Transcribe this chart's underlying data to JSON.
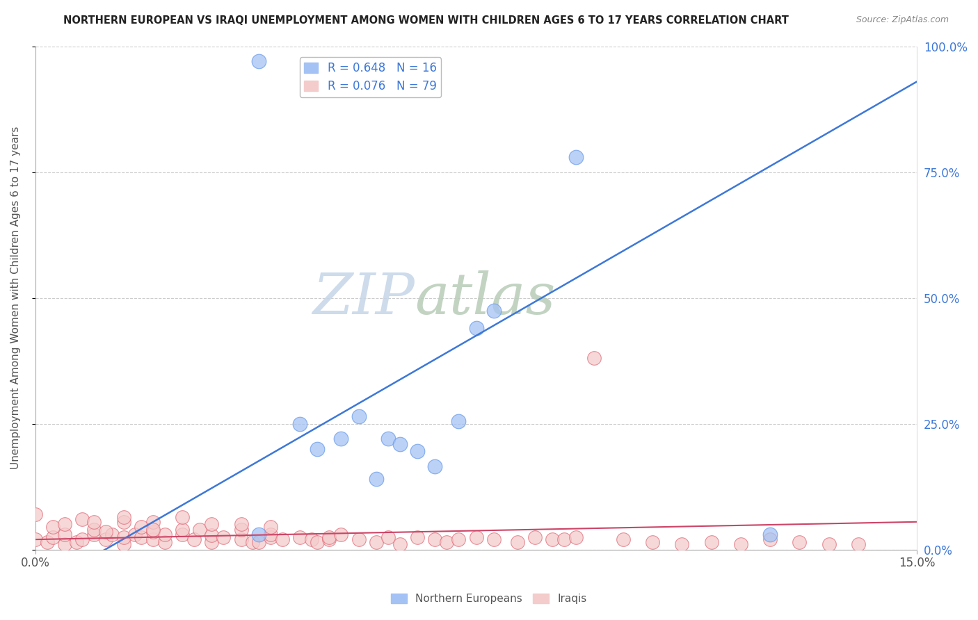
{
  "title": "NORTHERN EUROPEAN VS IRAQI UNEMPLOYMENT AMONG WOMEN WITH CHILDREN AGES 6 TO 17 YEARS CORRELATION CHART",
  "source": "Source: ZipAtlas.com",
  "ylabel": "Unemployment Among Women with Children Ages 6 to 17 years",
  "xlim": [
    0.0,
    0.15
  ],
  "ylim": [
    0.0,
    1.0
  ],
  "xtick_labels": [
    "0.0%",
    "15.0%"
  ],
  "xtick_values": [
    0.0,
    0.15
  ],
  "ytick_labels_right": [
    "0.0%",
    "25.0%",
    "50.0%",
    "75.0%",
    "100.0%"
  ],
  "ytick_values": [
    0.0,
    0.25,
    0.5,
    0.75,
    1.0
  ],
  "grid_color": "#cccccc",
  "watermark": "ZIPatlas",
  "watermark_color_zip": "#c5d5e8",
  "watermark_color_atlas": "#c8d8c8",
  "legend_R1": "R = 0.648",
  "legend_N1": "N = 16",
  "legend_R2": "R = 0.076",
  "legend_N2": "N = 79",
  "legend_label1": "Northern Europeans",
  "legend_label2": "Iraqis",
  "blue_color": "#a4c2f4",
  "pink_color": "#f4cccc",
  "blue_edge_color": "#6d9eeb",
  "pink_edge_color": "#e06c7a",
  "blue_line_color": "#3d78d8",
  "pink_line_color": "#cc4466",
  "blue_scatter": {
    "x": [
      0.038,
      0.045,
      0.048,
      0.052,
      0.055,
      0.058,
      0.06,
      0.062,
      0.065,
      0.068,
      0.072,
      0.075,
      0.078,
      0.092,
      0.125,
      0.038
    ],
    "y": [
      0.97,
      0.25,
      0.2,
      0.22,
      0.265,
      0.14,
      0.22,
      0.21,
      0.195,
      0.165,
      0.255,
      0.44,
      0.475,
      0.78,
      0.03,
      0.03
    ]
  },
  "blue_line": {
    "x": [
      0.0,
      0.15
    ],
    "y": [
      -0.08,
      0.93
    ]
  },
  "pink_scatter": {
    "x": [
      0.0,
      0.002,
      0.003,
      0.005,
      0.005,
      0.007,
      0.008,
      0.01,
      0.01,
      0.012,
      0.013,
      0.015,
      0.015,
      0.015,
      0.017,
      0.018,
      0.02,
      0.02,
      0.02,
      0.022,
      0.022,
      0.025,
      0.025,
      0.027,
      0.028,
      0.03,
      0.03,
      0.032,
      0.035,
      0.035,
      0.037,
      0.038,
      0.04,
      0.04,
      0.042,
      0.045,
      0.047,
      0.048,
      0.05,
      0.05,
      0.052,
      0.055,
      0.058,
      0.06,
      0.062,
      0.065,
      0.068,
      0.07,
      0.072,
      0.075,
      0.078,
      0.082,
      0.085,
      0.088,
      0.09,
      0.092,
      0.095,
      0.1,
      0.105,
      0.11,
      0.115,
      0.12,
      0.125,
      0.13,
      0.135,
      0.14,
      0.0,
      0.003,
      0.005,
      0.008,
      0.01,
      0.012,
      0.015,
      0.018,
      0.02,
      0.025,
      0.03,
      0.035,
      0.04
    ],
    "y": [
      0.02,
      0.015,
      0.025,
      0.01,
      0.03,
      0.015,
      0.02,
      0.03,
      0.04,
      0.02,
      0.03,
      0.01,
      0.025,
      0.055,
      0.03,
      0.025,
      0.02,
      0.035,
      0.055,
      0.015,
      0.03,
      0.03,
      0.04,
      0.02,
      0.04,
      0.015,
      0.028,
      0.025,
      0.02,
      0.04,
      0.015,
      0.015,
      0.025,
      0.03,
      0.02,
      0.025,
      0.02,
      0.015,
      0.02,
      0.025,
      0.03,
      0.02,
      0.015,
      0.025,
      0.01,
      0.025,
      0.02,
      0.015,
      0.02,
      0.025,
      0.02,
      0.015,
      0.025,
      0.02,
      0.02,
      0.025,
      0.38,
      0.02,
      0.015,
      0.01,
      0.015,
      0.01,
      0.02,
      0.015,
      0.01,
      0.01,
      0.07,
      0.045,
      0.05,
      0.06,
      0.055,
      0.035,
      0.065,
      0.045,
      0.04,
      0.065,
      0.05,
      0.05,
      0.045
    ]
  },
  "pink_line": {
    "x": [
      0.0,
      0.15
    ],
    "y": [
      0.02,
      0.055
    ]
  }
}
